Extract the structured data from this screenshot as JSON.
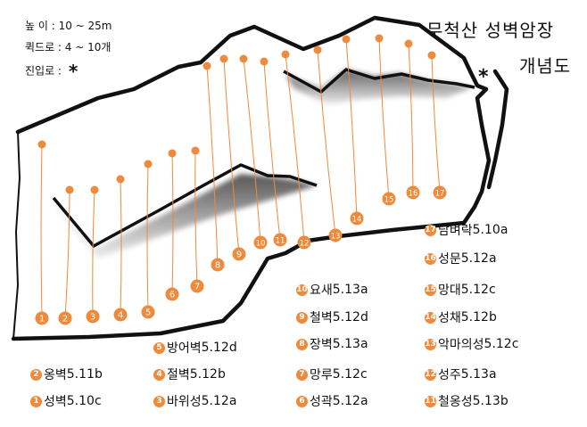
{
  "info": {
    "height": "높   이 : 10 ~ 25m",
    "quickdraws": "퀵드로 :  4 ~ 10개",
    "approach": "진입로 :"
  },
  "approach_mark": "*",
  "title": {
    "line1": "무척산 성벽암장",
    "line2": "개념도"
  },
  "colors": {
    "route": "#ee8a3c",
    "rock": "#111111"
  },
  "routes": [
    {
      "no": "1",
      "name": "성벽",
      "grade": "5.10c"
    },
    {
      "no": "2",
      "name": "옹벽",
      "grade": "5.11b"
    },
    {
      "no": "3",
      "name": "바위성",
      "grade": "5.12a"
    },
    {
      "no": "4",
      "name": "절벽",
      "grade": "5.12b"
    },
    {
      "no": "5",
      "name": "방어벽",
      "grade": "5.12d"
    },
    {
      "no": "6",
      "name": "성곽",
      "grade": "5.12a"
    },
    {
      "no": "7",
      "name": "망루",
      "grade": "5.12c"
    },
    {
      "no": "8",
      "name": "장벽",
      "grade": "5.13a"
    },
    {
      "no": "9",
      "name": "철벽",
      "grade": "5.12d"
    },
    {
      "no": "10",
      "name": "요새",
      "grade": "5.13a"
    },
    {
      "no": "11",
      "name": "철옹성",
      "grade": "5.13b"
    },
    {
      "no": "12",
      "name": "성주",
      "grade": "5.13a"
    },
    {
      "no": "13",
      "name": "악마의성",
      "grade": "5.12c"
    },
    {
      "no": "14",
      "name": "성채",
      "grade": "5.12b"
    },
    {
      "no": "15",
      "name": "망대",
      "grade": "5.12c"
    },
    {
      "no": "16",
      "name": "성문",
      "grade": "5.12a"
    },
    {
      "no": "17",
      "name": "담벼락",
      "grade": "5.10a"
    }
  ]
}
